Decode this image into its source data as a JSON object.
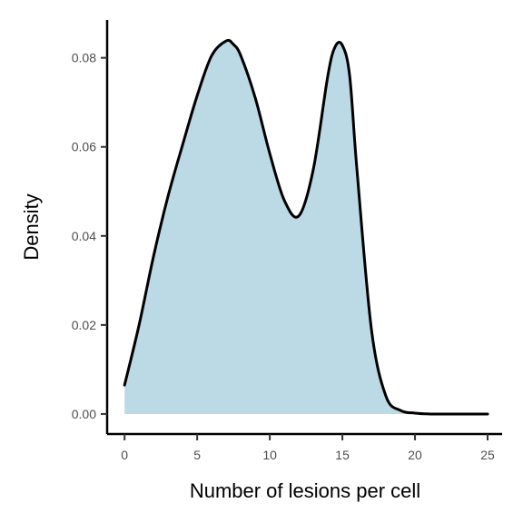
{
  "chart_data": {
    "type": "area",
    "title": "",
    "xlabel": "Number of lesions per cell",
    "ylabel": "Density",
    "xlim": [
      -1.2,
      26
    ],
    "ylim": [
      -0.0045,
      0.0885
    ],
    "xticks": [
      0,
      5,
      10,
      15,
      20,
      25
    ],
    "xtick_labels": [
      "0",
      "5",
      "10",
      "15",
      "20",
      "25"
    ],
    "yticks": [
      0.0,
      0.02,
      0.04,
      0.06,
      0.08
    ],
    "ytick_labels": [
      "0.00",
      "0.02",
      "0.04",
      "0.06",
      "0.08"
    ],
    "grid": false,
    "legend": "none",
    "fill_color": "#bcdae6",
    "line_color": "#000000",
    "fill_range": [
      0,
      20
    ],
    "x": [
      0,
      1,
      2,
      3,
      4,
      5,
      6,
      7,
      7.5,
      8,
      9,
      10,
      11,
      12,
      13,
      14,
      14.5,
      15,
      15.5,
      16,
      17,
      18,
      19,
      20,
      21,
      22,
      25
    ],
    "y": [
      0.0065,
      0.02,
      0.0355,
      0.049,
      0.0605,
      0.0715,
      0.0805,
      0.0838,
      0.083,
      0.0805,
      0.071,
      0.0585,
      0.048,
      0.0445,
      0.055,
      0.076,
      0.0825,
      0.0828,
      0.076,
      0.055,
      0.019,
      0.004,
      0.0008,
      0.0002,
      0.0,
      0.0,
      0.0
    ]
  }
}
